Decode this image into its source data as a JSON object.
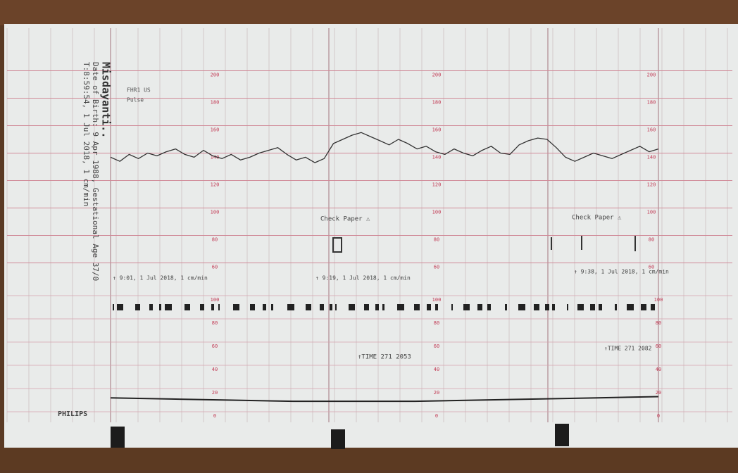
{
  "patient": {
    "name": "Misdayanti..",
    "line1": "Date of Birth: 9 Apr 1988, Gestational Age 37/0",
    "line2": "T:8:59:54, 1 Jul 2018, 1 cm/min"
  },
  "brand": "PHILIPS",
  "legend": [
    "FHR1 US",
    "Pulse"
  ],
  "annotations": {
    "check_paper": "Check Paper ⚠",
    "time_marks": [
      "↑ 9:01, 1 Jul 2018, 1 cm/min",
      "↑ 9:19, 1 Jul 2018, 1 cm/min",
      "↑ 9:38, 1 Jul 2018, 1 cm/min"
    ],
    "time_labels": [
      "↑TIME 271 2053",
      "↑TIME 271 2082"
    ]
  },
  "fhr": {
    "ylim": [
      50,
      210
    ],
    "yticks": [
      200,
      180,
      160,
      140,
      120,
      100,
      80,
      60
    ],
    "values": [
      137,
      134,
      139,
      136,
      140,
      138,
      141,
      143,
      139,
      137,
      142,
      138,
      136,
      139,
      135,
      137,
      140,
      142,
      144,
      139,
      135,
      137,
      133,
      136,
      147,
      150,
      153,
      155,
      152,
      149,
      146,
      150,
      147,
      143,
      145,
      141,
      139,
      143,
      140,
      138,
      142,
      145,
      140,
      139,
      146,
      149,
      151,
      150,
      144,
      137,
      134,
      137,
      140,
      138,
      136,
      139,
      142,
      145,
      141,
      143
    ]
  },
  "toco": {
    "ylim": [
      0,
      100
    ],
    "yticks": [
      100,
      80,
      60,
      40,
      20,
      0
    ],
    "values": [
      12,
      11,
      10,
      9,
      9,
      9,
      10,
      11,
      12,
      13
    ]
  }
}
